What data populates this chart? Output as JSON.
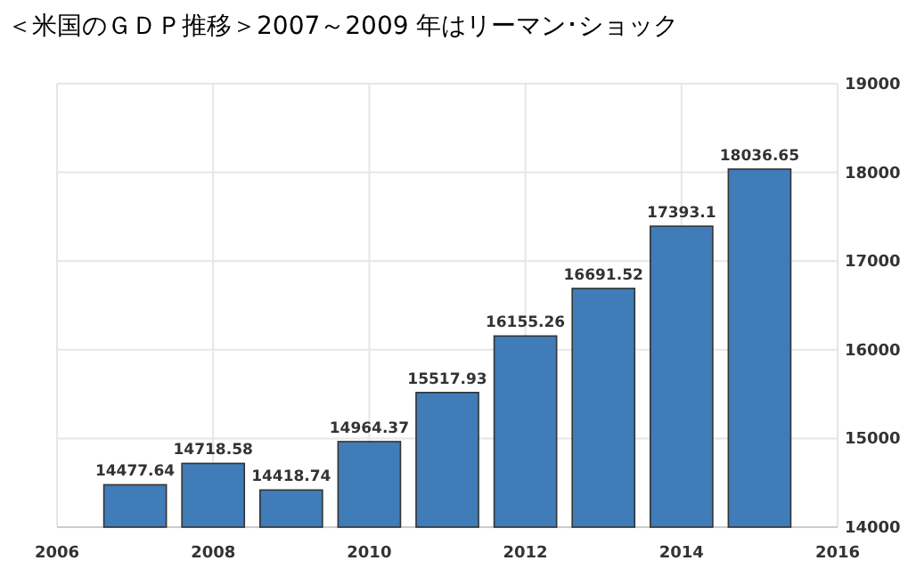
{
  "chart_data": {
    "type": "bar",
    "title": "＜米国のＧＤＰ推移＞2007～2009 年はリーマン･ショック",
    "x": [
      2007,
      2008,
      2009,
      2010,
      2011,
      2012,
      2013,
      2014,
      2015
    ],
    "values": [
      14477.64,
      14718.58,
      14418.74,
      14964.37,
      15517.93,
      16155.26,
      16691.52,
      17393.1,
      18036.65
    ],
    "color": "#3f7cb8",
    "xlim": [
      2006,
      2016
    ],
    "xticks": [
      2006,
      2008,
      2010,
      2012,
      2014,
      2016
    ],
    "ylim": [
      14000,
      19000
    ],
    "yticks": [
      14000,
      15000,
      16000,
      17000,
      18000,
      19000
    ],
    "grid": true,
    "data_labels": true
  }
}
